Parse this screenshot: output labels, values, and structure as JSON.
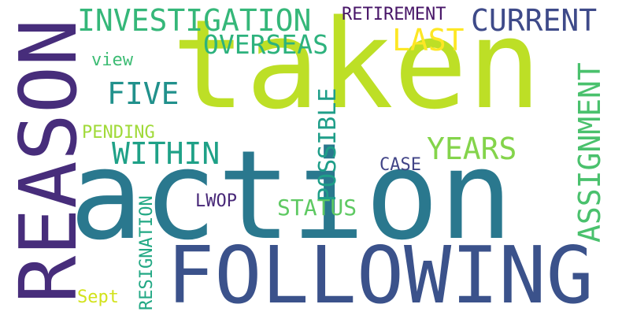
{
  "words": {
    "taken": {
      "text": "taken",
      "color": "#bddf26"
    },
    "action": {
      "text": "action",
      "color": "#2a788e"
    },
    "following": {
      "text": "FOLLOWING",
      "color": "#3b528b"
    },
    "reason": {
      "text": "REASON",
      "color": "#472d7b"
    },
    "investigation": {
      "text": "INVESTIGATION",
      "color": "#35b779"
    },
    "current": {
      "text": "CURRENT",
      "color": "#3e4a89"
    },
    "retirement": {
      "text": "RETIREMENT",
      "color": "#481668"
    },
    "overseas": {
      "text": "OVERSEAS",
      "color": "#2db27d"
    },
    "last": {
      "text": "LAST",
      "color": "#fde725"
    },
    "view": {
      "text": "view",
      "color": "#3dbc74"
    },
    "five": {
      "text": "FIVE",
      "color": "#21918c"
    },
    "pending": {
      "text": "PENDING",
      "color": "#a0da39"
    },
    "within": {
      "text": "WITHIN",
      "color": "#1fa187"
    },
    "years": {
      "text": "YEARS",
      "color": "#84d44b"
    },
    "possible": {
      "text": "POSSIBLE",
      "color": "#1f9e89"
    },
    "assignment": {
      "text": "ASSIGNMENT",
      "color": "#4ac16d"
    },
    "case": {
      "text": "CASE",
      "color": "#414487"
    },
    "lwop": {
      "text": "LWOP",
      "color": "#482878"
    },
    "status": {
      "text": "STATUS",
      "color": "#5ec962"
    },
    "resignation": {
      "text": "RESIGNATION",
      "color": "#22a884"
    },
    "sept": {
      "text": "Sept",
      "color": "#d2e21b"
    }
  }
}
